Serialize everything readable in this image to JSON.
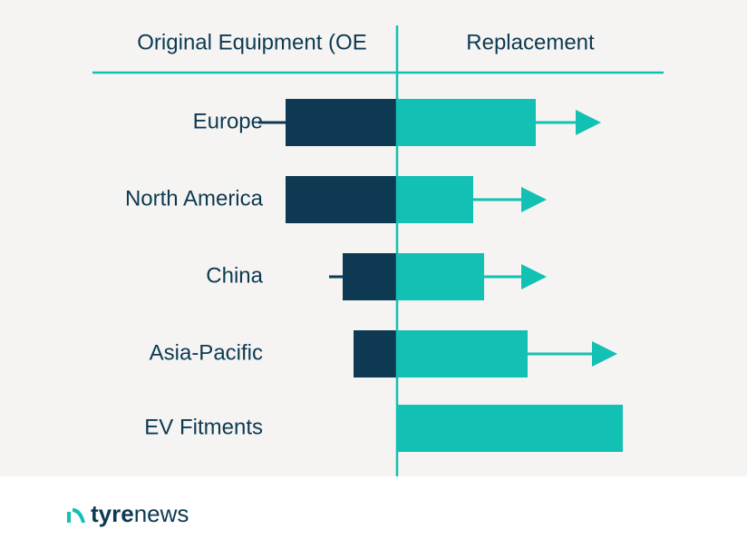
{
  "chart_data": {
    "type": "diverging-bar",
    "categories": [
      "Europe",
      "North America",
      "China",
      "Asia-Pacific",
      "EV Fitments"
    ],
    "series": [
      {
        "name": "Original Equipment (OE",
        "color": "#0d3a52",
        "side": "left",
        "values": [
          41,
          41,
          20,
          16,
          null
        ],
        "whisker_ends": [
          51,
          null,
          25,
          null,
          null
        ]
      },
      {
        "name": "Replacement",
        "color": "#13c0b4",
        "side": "right",
        "values": [
          51,
          28,
          32,
          48,
          83
        ],
        "arrow_ends": [
          75,
          55,
          55,
          81,
          null
        ]
      }
    ]
  },
  "footer": {
    "logo_bold": "tyre",
    "logo_rest": "news"
  }
}
